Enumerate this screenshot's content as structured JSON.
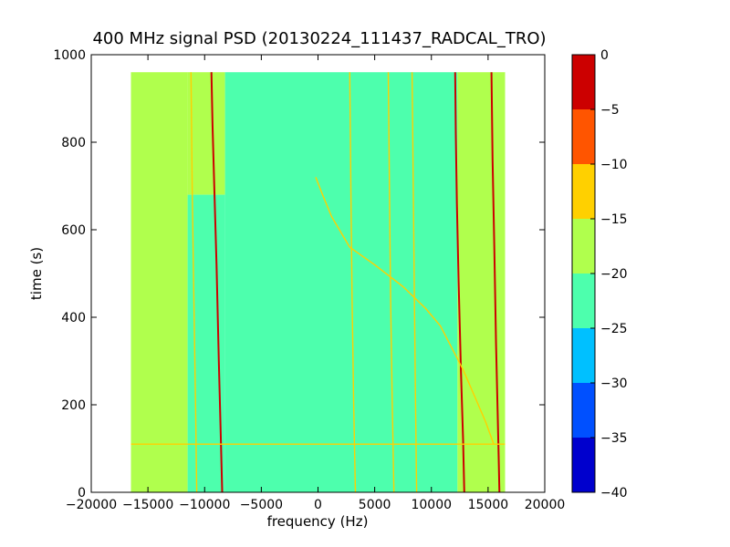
{
  "chart_data": {
    "type": "heatmap",
    "title": "400 MHz signal PSD (20130224_111437_RADCAL_TRO)",
    "xlabel": "frequency (Hz)",
    "ylabel": "time (s)",
    "xlim": [
      -20000,
      20000
    ],
    "ylim": [
      0,
      1000
    ],
    "x_ticks": [
      -20000,
      -15000,
      -10000,
      -5000,
      0,
      5000,
      10000,
      15000,
      20000
    ],
    "y_ticks": [
      0,
      200,
      400,
      600,
      800,
      1000
    ],
    "data_extent": {
      "x": [
        -16500,
        16500
      ],
      "y": [
        0,
        960
      ]
    },
    "colorbar": {
      "range": [
        -40,
        0
      ],
      "ticks": [
        0,
        -5,
        -10,
        -15,
        -20,
        -25,
        -30,
        -35,
        -40
      ],
      "levels": [
        {
          "from": -40,
          "to": -35,
          "color": "#0000cd"
        },
        {
          "from": -35,
          "to": -30,
          "color": "#0050ff"
        },
        {
          "from": -30,
          "to": -25,
          "color": "#00c0ff"
        },
        {
          "from": -25,
          "to": -20,
          "color": "#4dffad"
        },
        {
          "from": -20,
          "to": -15,
          "color": "#b0ff4d"
        },
        {
          "from": -15,
          "to": -10,
          "color": "#ffd000"
        },
        {
          "from": -10,
          "to": -5,
          "color": "#ff5500"
        },
        {
          "from": -5,
          "to": 0,
          "color": "#cc0000"
        }
      ]
    },
    "regions": [
      {
        "x": [
          -16500,
          -11500
        ],
        "y": [
          0,
          960
        ],
        "level": -17.5
      },
      {
        "x": [
          -11500,
          -8200
        ],
        "y": [
          680,
          960
        ],
        "level": -17.5
      },
      {
        "x": [
          -11500,
          -8200
        ],
        "y": [
          0,
          680
        ],
        "level": -22.5
      },
      {
        "x": [
          -8200,
          12300
        ],
        "y": [
          0,
          960
        ],
        "level": -22.5
      },
      {
        "x": [
          12300,
          16500
        ],
        "y": [
          0,
          960
        ],
        "level": -17.5
      }
    ],
    "traces": [
      {
        "name": "",
        "level": -2.5,
        "points": [
          [
            -9400,
            960
          ],
          [
            -9300,
            840
          ],
          [
            -9150,
            700
          ],
          [
            -8950,
            520
          ],
          [
            -8750,
            300
          ],
          [
            -8550,
            100
          ],
          [
            -8450,
            0
          ]
        ]
      },
      {
        "name": "",
        "level": -2.5,
        "points": [
          [
            12100,
            960
          ],
          [
            12150,
            820
          ],
          [
            12250,
            660
          ],
          [
            12400,
            480
          ],
          [
            12600,
            280
          ],
          [
            12800,
            120
          ],
          [
            12900,
            0
          ]
        ]
      },
      {
        "name": "",
        "level": -2.5,
        "points": [
          [
            15300,
            960
          ],
          [
            15400,
            760
          ],
          [
            15550,
            560
          ],
          [
            15700,
            340
          ],
          [
            15850,
            180
          ],
          [
            15950,
            60
          ],
          [
            16000,
            0
          ]
        ]
      },
      {
        "name": "",
        "level": -12.5,
        "points": [
          [
            -200,
            720
          ],
          [
            400,
            680
          ],
          [
            1200,
            630
          ],
          [
            2800,
            560
          ],
          [
            5000,
            520
          ],
          [
            7500,
            470
          ],
          [
            9500,
            420
          ],
          [
            10800,
            380
          ],
          [
            11800,
            330
          ],
          [
            12800,
            280
          ],
          [
            13800,
            220
          ],
          [
            14800,
            160
          ],
          [
            15500,
            110
          ]
        ]
      },
      {
        "name": "",
        "level": -12.5,
        "points": [
          [
            2800,
            960
          ],
          [
            2900,
            700
          ],
          [
            3000,
            450
          ],
          [
            3150,
            200
          ],
          [
            3300,
            0
          ]
        ]
      },
      {
        "name": "",
        "level": -12.5,
        "points": [
          [
            6200,
            960
          ],
          [
            6300,
            700
          ],
          [
            6400,
            450
          ],
          [
            6550,
            200
          ],
          [
            6700,
            0
          ]
        ]
      },
      {
        "name": "",
        "level": -12.5,
        "points": [
          [
            8300,
            960
          ],
          [
            8400,
            700
          ],
          [
            8500,
            450
          ],
          [
            8600,
            200
          ],
          [
            8700,
            0
          ]
        ]
      },
      {
        "name": "",
        "level": -12.5,
        "points": [
          [
            -11200,
            960
          ],
          [
            -11100,
            700
          ],
          [
            -10950,
            450
          ],
          [
            -10800,
            200
          ],
          [
            -10700,
            0
          ]
        ]
      },
      {
        "name": "",
        "level": -12.5,
        "points": [
          [
            -16500,
            110
          ],
          [
            16500,
            110
          ]
        ]
      }
    ]
  }
}
